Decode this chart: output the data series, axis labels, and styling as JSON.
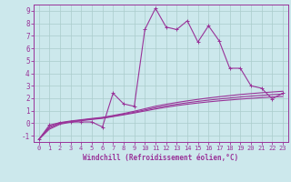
{
  "xlabel": "Windchill (Refroidissement éolien,°C)",
  "bg_color": "#cce8ec",
  "grid_color": "#aacccc",
  "line_color": "#993399",
  "x_data": [
    0,
    1,
    2,
    3,
    4,
    5,
    6,
    7,
    8,
    9,
    10,
    11,
    12,
    13,
    14,
    15,
    16,
    17,
    18,
    19,
    20,
    21,
    22,
    23
  ],
  "y_scatter": [
    -1.3,
    -0.15,
    0.05,
    0.1,
    0.1,
    0.1,
    -0.3,
    2.4,
    1.55,
    1.35,
    7.5,
    9.2,
    7.7,
    7.5,
    8.2,
    6.5,
    7.8,
    6.6,
    4.4,
    4.4,
    3.0,
    2.8,
    1.95,
    2.4
  ],
  "y_curve1": [
    -1.3,
    -0.28,
    0.05,
    0.18,
    0.28,
    0.38,
    0.47,
    0.62,
    0.78,
    0.96,
    1.16,
    1.36,
    1.52,
    1.66,
    1.79,
    1.91,
    2.02,
    2.12,
    2.21,
    2.3,
    2.37,
    2.44,
    2.5,
    2.56
  ],
  "y_curve2": [
    -1.3,
    -0.38,
    -0.02,
    0.13,
    0.24,
    0.34,
    0.43,
    0.57,
    0.72,
    0.88,
    1.06,
    1.24,
    1.39,
    1.52,
    1.64,
    1.75,
    1.85,
    1.94,
    2.02,
    2.1,
    2.17,
    2.23,
    2.29,
    2.34
  ],
  "y_curve3": [
    -1.3,
    -0.48,
    -0.08,
    0.08,
    0.2,
    0.3,
    0.39,
    0.53,
    0.67,
    0.82,
    0.98,
    1.14,
    1.28,
    1.41,
    1.52,
    1.62,
    1.71,
    1.79,
    1.86,
    1.93,
    1.99,
    2.05,
    2.1,
    2.14
  ],
  "xlim": [
    -0.5,
    23.5
  ],
  "ylim": [
    -1.5,
    9.5
  ],
  "yticks": [
    -1,
    0,
    1,
    2,
    3,
    4,
    5,
    6,
    7,
    8,
    9
  ],
  "xticks": [
    0,
    1,
    2,
    3,
    4,
    5,
    6,
    7,
    8,
    9,
    10,
    11,
    12,
    13,
    14,
    15,
    16,
    17,
    18,
    19,
    20,
    21,
    22,
    23
  ]
}
